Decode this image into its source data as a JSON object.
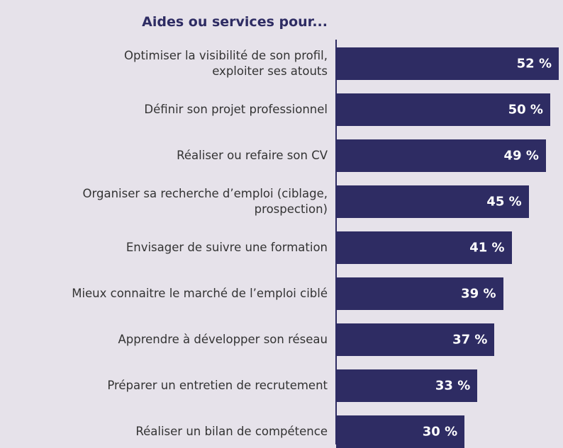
{
  "chart_data": {
    "type": "bar",
    "orientation": "horizontal",
    "title": "Aides ou services pour...",
    "categories": [
      "Optimiser la visibilité de son profil,\nexploiter ses atouts",
      "Définir son projet professionnel",
      "Réaliser ou refaire son CV",
      "Organiser sa recherche d’emploi (ciblage,\nprospection)",
      "Envisager de suivre une formation",
      "Mieux connaitre le marché de l’emploi ciblé",
      "Apprendre à développer son réseau",
      "Préparer un entretien de recrutement",
      "Réaliser un bilan de compétence"
    ],
    "values": [
      52,
      50,
      49,
      45,
      41,
      39,
      37,
      33,
      30
    ],
    "value_labels": [
      "52 %",
      "50 %",
      "49 %",
      "45 %",
      "41 %",
      "39 %",
      "37 %",
      "33 %",
      "30 %"
    ],
    "color": "#2e2c63",
    "xlim": [
      0,
      52
    ]
  }
}
